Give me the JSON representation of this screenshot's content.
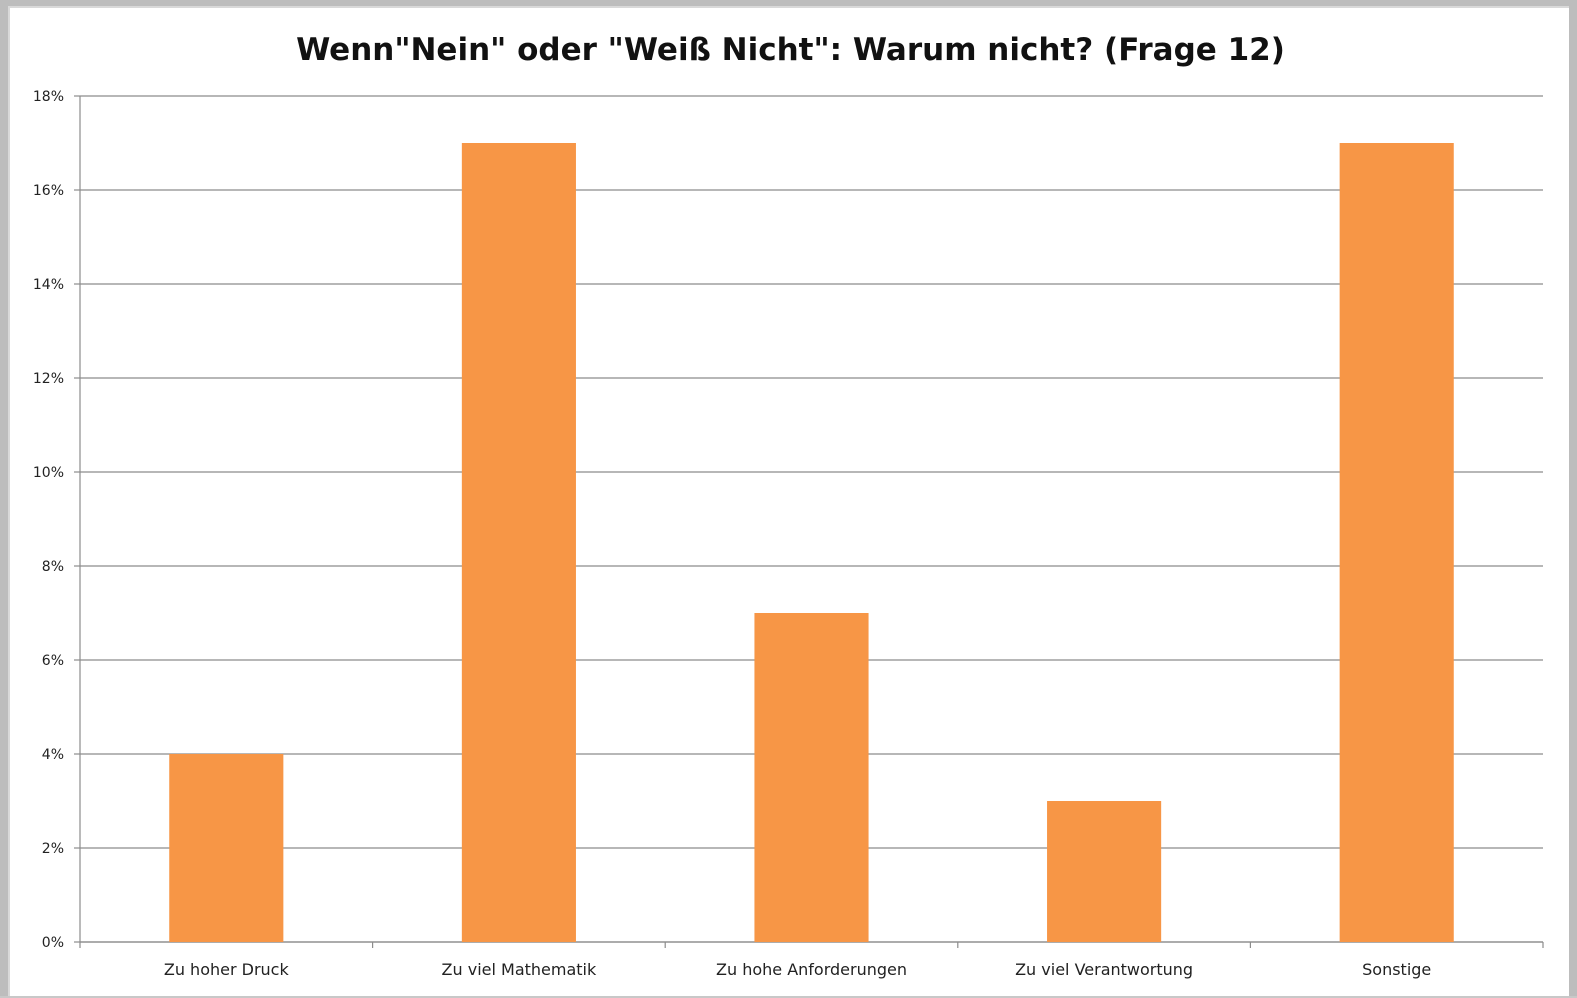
{
  "chart_data": {
    "type": "bar",
    "title": "Wenn\"Nein\" oder \"Weiß Nicht\": Warum nicht? (Frage 12)",
    "categories": [
      "Zu hoher Druck",
      "Zu viel Mathematik",
      "Zu hohe Anforderungen",
      "Zu viel Verantwortung",
      "Sonstige"
    ],
    "values": [
      4,
      17,
      7,
      3,
      17
    ],
    "ylim": [
      0,
      18
    ],
    "yticks": [
      0,
      2,
      4,
      6,
      8,
      10,
      12,
      14,
      16,
      18
    ],
    "ytick_labels": [
      "0%",
      "2%",
      "4%",
      "6%",
      "8%",
      "10%",
      "12%",
      "14%",
      "16%",
      "18%"
    ],
    "xlabel": "",
    "ylabel": "",
    "grid": true,
    "legend": "none",
    "bar_color": "#f79646"
  }
}
